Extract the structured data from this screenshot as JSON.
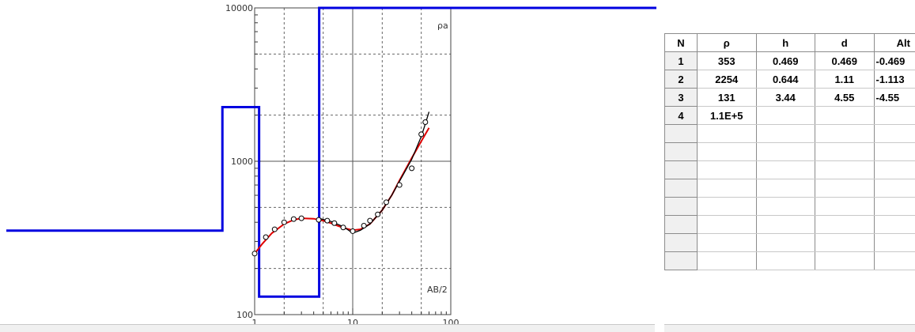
{
  "chart_data": {
    "type": "line",
    "x_scale": "log",
    "y_scale": "log",
    "xlim": [
      1,
      100
    ],
    "ylim": [
      100,
      10000
    ],
    "x_ticks": [
      "1",
      "10",
      "100"
    ],
    "y_ticks": [
      "100",
      "1000",
      "10000"
    ],
    "ylabel": "ρa",
    "xlabel": "AB/2",
    "grid": true,
    "series": [
      {
        "kind": "measured_points",
        "x": [
          1,
          1.3,
          1.6,
          2.0,
          2.5,
          3.0,
          4.5,
          5.5,
          6.5,
          8.0,
          10,
          13,
          15,
          18,
          22,
          30,
          40,
          50,
          55
        ],
        "y": [
          250,
          320,
          360,
          400,
          420,
          425,
          415,
          410,
          395,
          370,
          350,
          380,
          410,
          450,
          540,
          700,
          900,
          1500,
          1800
        ]
      },
      {
        "kind": "fitted_curve",
        "x": [
          1,
          1.2,
          1.5,
          2,
          2.5,
          3,
          4,
          5,
          6,
          7,
          8,
          10,
          12,
          15,
          20,
          25,
          30,
          40,
          50,
          60
        ],
        "y": [
          250,
          290,
          340,
          390,
          415,
          425,
          422,
          410,
          395,
          380,
          368,
          355,
          360,
          390,
          480,
          600,
          750,
          1050,
          1350,
          1650
        ]
      },
      {
        "kind": "black_curve",
        "x": [
          4.5,
          6,
          8,
          10,
          12,
          15,
          20,
          25,
          30,
          40,
          50,
          55,
          60
        ],
        "y": [
          425,
          405,
          375,
          340,
          355,
          390,
          480,
          600,
          740,
          1030,
          1450,
          1750,
          2100
        ]
      }
    ],
    "model": {
      "rho": [
        353,
        2254,
        131,
        110000
      ],
      "depth": [
        0.469,
        1.11,
        4.55
      ]
    }
  },
  "table": {
    "headers": [
      "N",
      "ρ",
      "h",
      "d",
      "Alt"
    ],
    "rows": [
      [
        "1",
        "353",
        "0.469",
        "0.469",
        "-0.469"
      ],
      [
        "2",
        "2254",
        "0.644",
        "1.11",
        "-1.113"
      ],
      [
        "3",
        "131",
        "3.44",
        "4.55",
        "-4.55"
      ],
      [
        "4",
        "1.1E+5",
        "",
        "",
        ""
      ],
      [
        "",
        "",
        "",
        "",
        ""
      ],
      [
        "",
        "",
        "",
        "",
        ""
      ],
      [
        "",
        "",
        "",
        "",
        ""
      ],
      [
        "",
        "",
        "",
        "",
        ""
      ],
      [
        "",
        "",
        "",
        "",
        ""
      ],
      [
        "",
        "",
        "",
        "",
        ""
      ],
      [
        "",
        "",
        "",
        "",
        ""
      ],
      [
        "",
        "",
        "",
        "",
        ""
      ]
    ]
  }
}
